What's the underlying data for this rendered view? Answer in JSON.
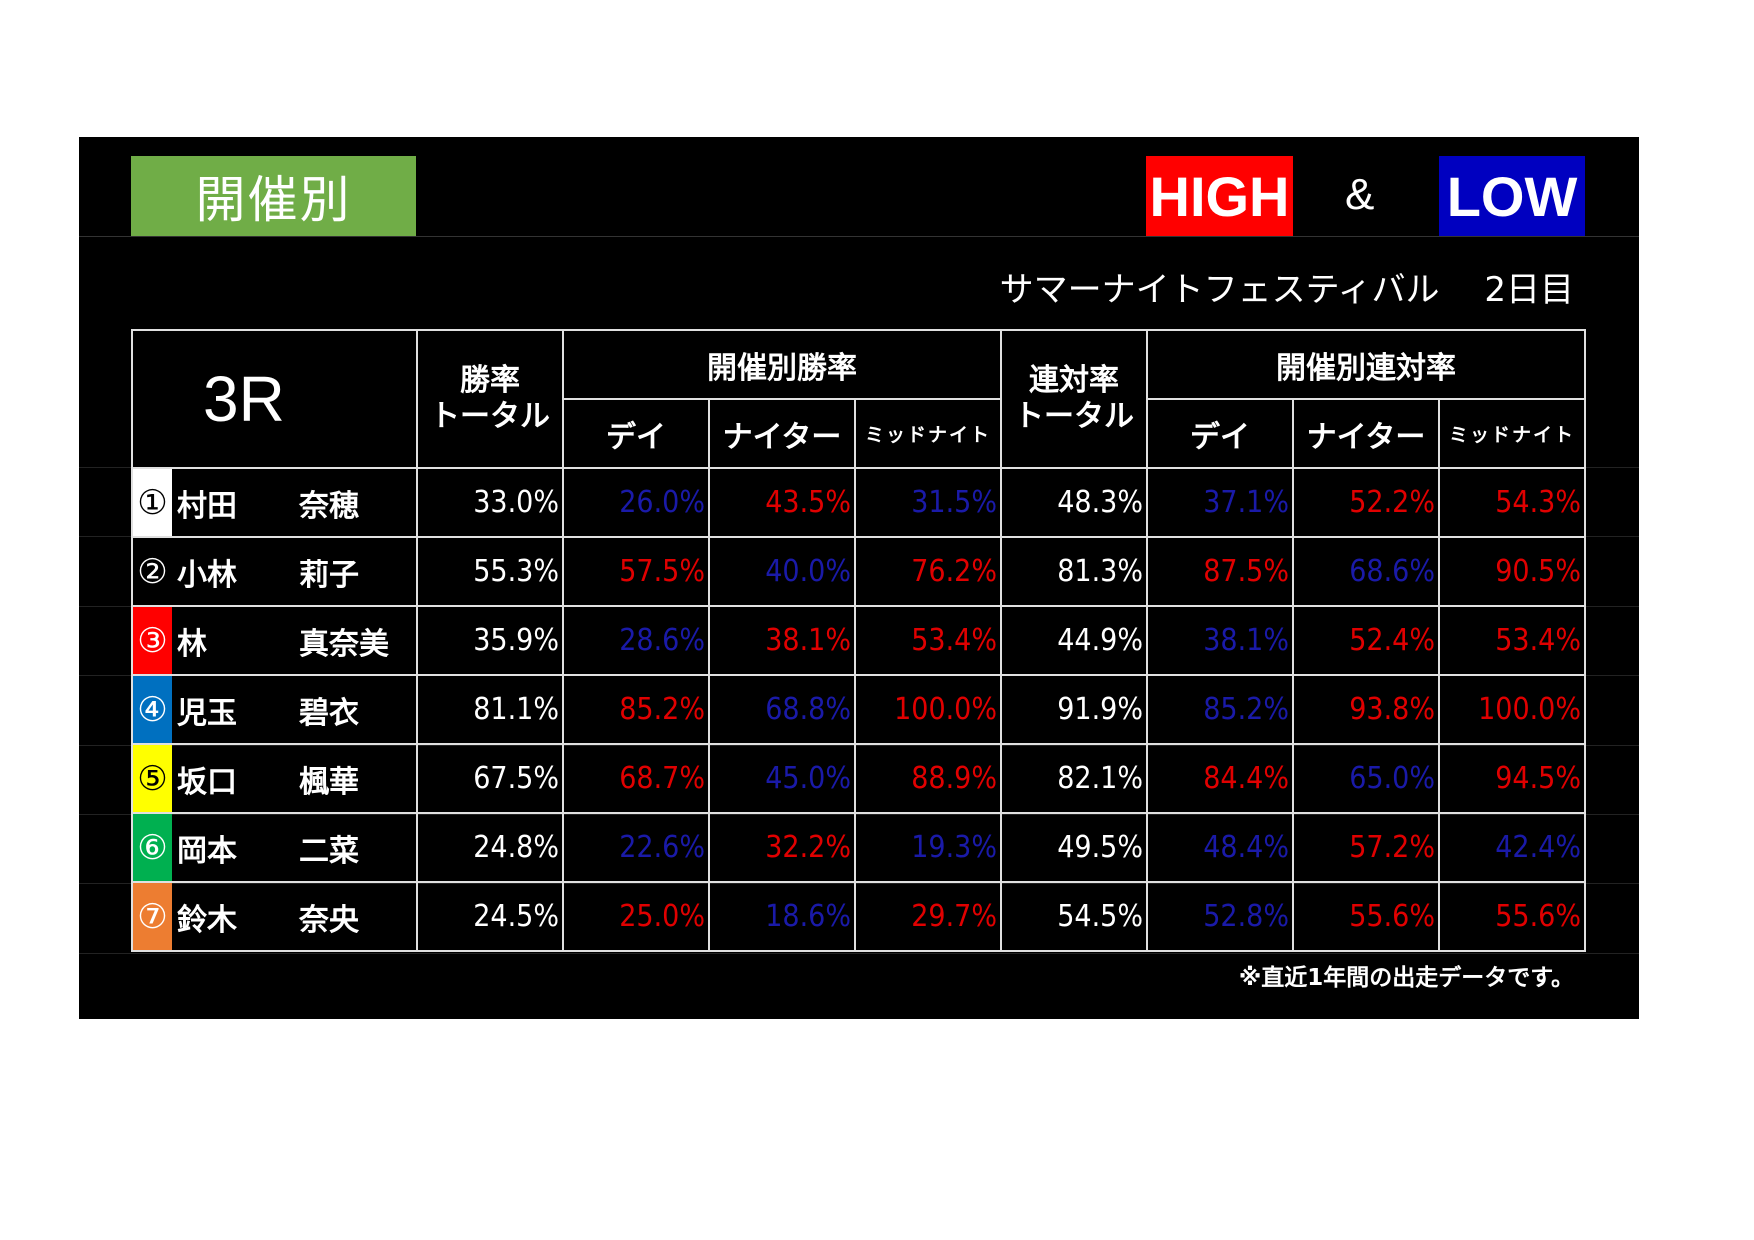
{
  "header": {
    "title": "開催別",
    "high_label": "HIGH",
    "amp": "&",
    "low_label": "LOW",
    "subtitle": "サマーナイトフェスティバル　 2日目"
  },
  "colors": {
    "high": "#e00000",
    "low": "#1a1aa8",
    "title_bg": "#70ad47"
  },
  "table": {
    "race": "3R",
    "col_win_total": "勝率トータル",
    "group_win": "開催別勝率",
    "col_quinella_total": "連対率トータル",
    "group_quinella": "開催別連対率",
    "sub_day": "デイ",
    "sub_nighter": "ナイター",
    "sub_midnight": "ミッドナイト",
    "rows": [
      {
        "badge": "①",
        "badge_bg": "#ffffff",
        "badge_fg": "#000000",
        "family": "村田",
        "given": "奈穂",
        "win_total": "33.0%",
        "win": [
          [
            "26.0%",
            "low"
          ],
          [
            "43.5%",
            "high"
          ],
          [
            "31.5%",
            "low"
          ]
        ],
        "q_total": "48.3%",
        "q": [
          [
            "37.1%",
            "low"
          ],
          [
            "52.2%",
            "high"
          ],
          [
            "54.3%",
            "high"
          ]
        ]
      },
      {
        "badge": "②",
        "badge_bg": "#000000",
        "badge_fg": "#ffffff",
        "family": "小林",
        "given": "莉子",
        "win_total": "55.3%",
        "win": [
          [
            "57.5%",
            "high"
          ],
          [
            "40.0%",
            "low"
          ],
          [
            "76.2%",
            "high"
          ]
        ],
        "q_total": "81.3%",
        "q": [
          [
            "87.5%",
            "high"
          ],
          [
            "68.6%",
            "low"
          ],
          [
            "90.5%",
            "high"
          ]
        ]
      },
      {
        "badge": "③",
        "badge_bg": "#ff0000",
        "badge_fg": "#ffffff",
        "family": "林",
        "given": "真奈美",
        "win_total": "35.9%",
        "win": [
          [
            "28.6%",
            "low"
          ],
          [
            "38.1%",
            "high"
          ],
          [
            "53.4%",
            "high"
          ]
        ],
        "q_total": "44.9%",
        "q": [
          [
            "38.1%",
            "low"
          ],
          [
            "52.4%",
            "high"
          ],
          [
            "53.4%",
            "high"
          ]
        ]
      },
      {
        "badge": "④",
        "badge_bg": "#0070c0",
        "badge_fg": "#ffffff",
        "family": "児玉",
        "given": "碧衣",
        "win_total": "81.1%",
        "win": [
          [
            "85.2%",
            "high"
          ],
          [
            "68.8%",
            "low"
          ],
          [
            "100.0%",
            "high"
          ]
        ],
        "q_total": "91.9%",
        "q": [
          [
            "85.2%",
            "low"
          ],
          [
            "93.8%",
            "high"
          ],
          [
            "100.0%",
            "high"
          ]
        ]
      },
      {
        "badge": "⑤",
        "badge_bg": "#ffff00",
        "badge_fg": "#000000",
        "family": "坂口",
        "given": "楓華",
        "win_total": "67.5%",
        "win": [
          [
            "68.7%",
            "high"
          ],
          [
            "45.0%",
            "low"
          ],
          [
            "88.9%",
            "high"
          ]
        ],
        "q_total": "82.1%",
        "q": [
          [
            "84.4%",
            "high"
          ],
          [
            "65.0%",
            "low"
          ],
          [
            "94.5%",
            "high"
          ]
        ]
      },
      {
        "badge": "⑥",
        "badge_bg": "#00b050",
        "badge_fg": "#ffffff",
        "family": "岡本",
        "given": "二菜",
        "win_total": "24.8%",
        "win": [
          [
            "22.6%",
            "low"
          ],
          [
            "32.2%",
            "high"
          ],
          [
            "19.3%",
            "low"
          ]
        ],
        "q_total": "49.5%",
        "q": [
          [
            "48.4%",
            "low"
          ],
          [
            "57.2%",
            "high"
          ],
          [
            "42.4%",
            "low"
          ]
        ]
      },
      {
        "badge": "⑦",
        "badge_bg": "#ed7d31",
        "badge_fg": "#ffffff",
        "family": "鈴木",
        "given": "奈央",
        "win_total": "24.5%",
        "win": [
          [
            "25.0%",
            "high"
          ],
          [
            "18.6%",
            "low"
          ],
          [
            "29.7%",
            "high"
          ]
        ],
        "q_total": "54.5%",
        "q": [
          [
            "52.8%",
            "low"
          ],
          [
            "55.6%",
            "high"
          ],
          [
            "55.6%",
            "high"
          ]
        ]
      }
    ]
  },
  "footnote": "※直近1年間の出走データです。"
}
